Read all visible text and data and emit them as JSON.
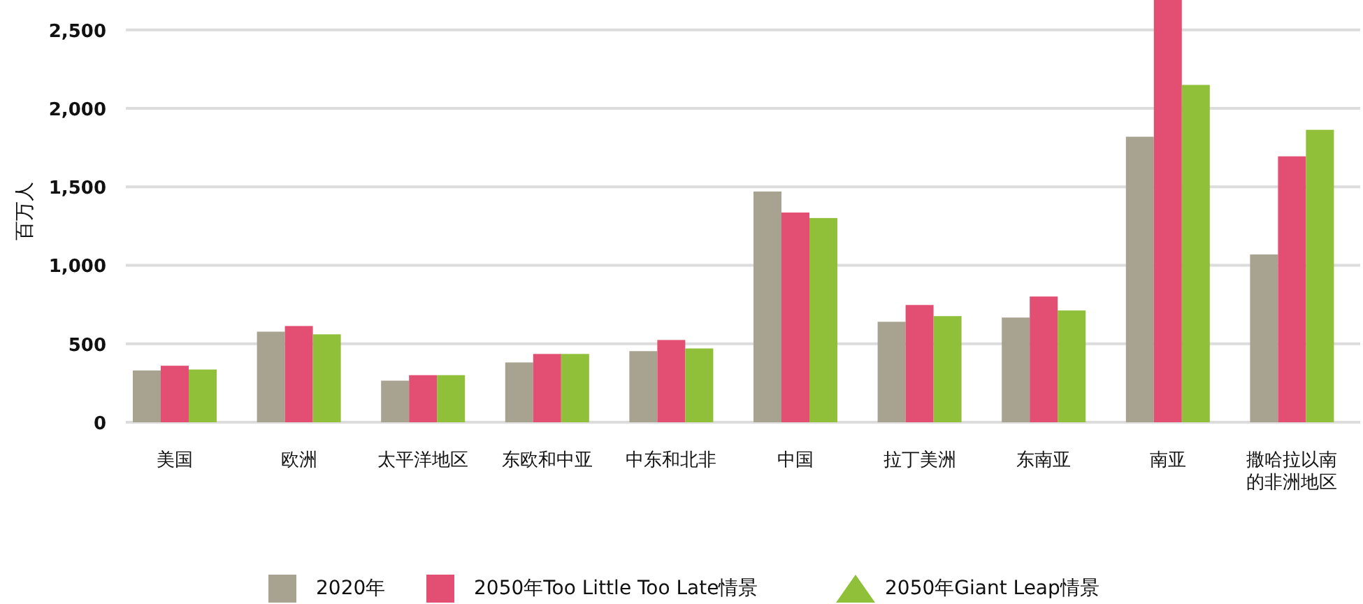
{
  "chart_data": {
    "type": "bar",
    "ylabel": "百万人",
    "categories": [
      "美国",
      "欧洲",
      "太平洋地区",
      "东欧和中亚",
      "中东和北非",
      "中国",
      "拉丁美洲",
      "东南亚",
      "南亚",
      "撒哈拉以南的非洲地区"
    ],
    "series": [
      {
        "name": "2020年",
        "color": "#a8a291",
        "values": [
          330,
          577,
          265,
          381,
          453,
          1470,
          640,
          667,
          1819,
          1069
        ]
      },
      {
        "name": "2050年Too Little Too Late情景",
        "color": "#e34f72",
        "values": [
          360,
          613,
          300,
          435,
          524,
          1336,
          747,
          801,
          2690,
          1694
        ]
      },
      {
        "name": "2050年Giant Leap情景",
        "color": "#90bf39",
        "marker": "triangle",
        "values": [
          336,
          560,
          300,
          435,
          470,
          1301,
          676,
          712,
          2149,
          1863
        ]
      }
    ],
    "ylim": [
      0,
      2690
    ],
    "yticks": [
      {
        "value": 0,
        "label": "0"
      },
      {
        "value": 500,
        "label": "500"
      },
      {
        "value": 1000,
        "label": "1,000"
      },
      {
        "value": 1500,
        "label": "1,500"
      },
      {
        "value": 2000,
        "label": "2,000"
      },
      {
        "value": 2500,
        "label": "2,500"
      }
    ],
    "grid": "y",
    "legend": "bottom"
  }
}
